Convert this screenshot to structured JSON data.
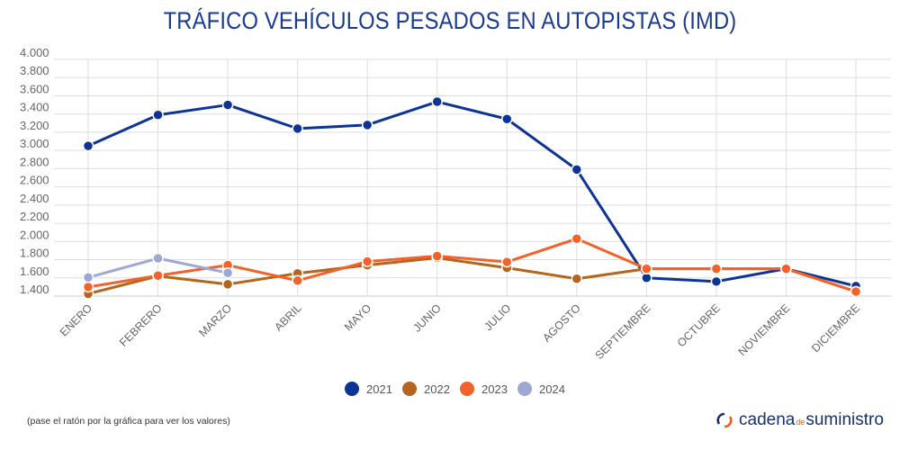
{
  "chart_data": {
    "type": "line",
    "title": "TRÁFICO VEHÍCULOS PESADOS EN AUTOPISTAS (IMD)",
    "xlabel": "",
    "ylabel": "",
    "ylim": [
      1400,
      4000
    ],
    "yticks": [
      "1.400",
      "1.600",
      "1.800",
      "2.000",
      "2.200",
      "2.400",
      "2.600",
      "2.800",
      "3.000",
      "3.200",
      "3.400",
      "3.600",
      "3.800",
      "4.000"
    ],
    "ytick_values": [
      1400,
      1600,
      1800,
      2000,
      2200,
      2400,
      2600,
      2800,
      3000,
      3200,
      3400,
      3600,
      3800,
      4000
    ],
    "grid": true,
    "legend_position": "bottom-center",
    "categories": [
      "ENERO",
      "FEBRERO",
      "MARZO",
      "ABRIL",
      "MAYO",
      "JUNIO",
      "JULIO",
      "AGOSTO",
      "SEPTIEMBRE",
      "OCTUBRE",
      "NOVIEMBRE",
      "DICIEMBRE"
    ],
    "series": [
      {
        "name": "2021",
        "color": "#0d3494",
        "values": [
          3050,
          3390,
          3500,
          3240,
          3280,
          3535,
          3345,
          2790,
          1600,
          1560,
          1700,
          1510
        ]
      },
      {
        "name": "2022",
        "color": "#b5651d",
        "values": [
          1425,
          1620,
          1530,
          1650,
          1740,
          1820,
          1710,
          1590,
          1700,
          1700,
          1700,
          1450
        ]
      },
      {
        "name": "2023",
        "color": "#f2622a",
        "values": [
          1500,
          1625,
          1740,
          1570,
          1780,
          1840,
          1775,
          2030,
          1700,
          1700,
          1700,
          1450
        ]
      },
      {
        "name": "2024",
        "color": "#9ea8d2",
        "values": [
          1605,
          1815,
          1655,
          null,
          null,
          null,
          null,
          null,
          null,
          null,
          null,
          null
        ]
      }
    ]
  },
  "note": "(pase el ratón por la gráfica para ver los valores)",
  "logo": {
    "part1": "cadena",
    "part2": "de",
    "part3": "suministro"
  }
}
